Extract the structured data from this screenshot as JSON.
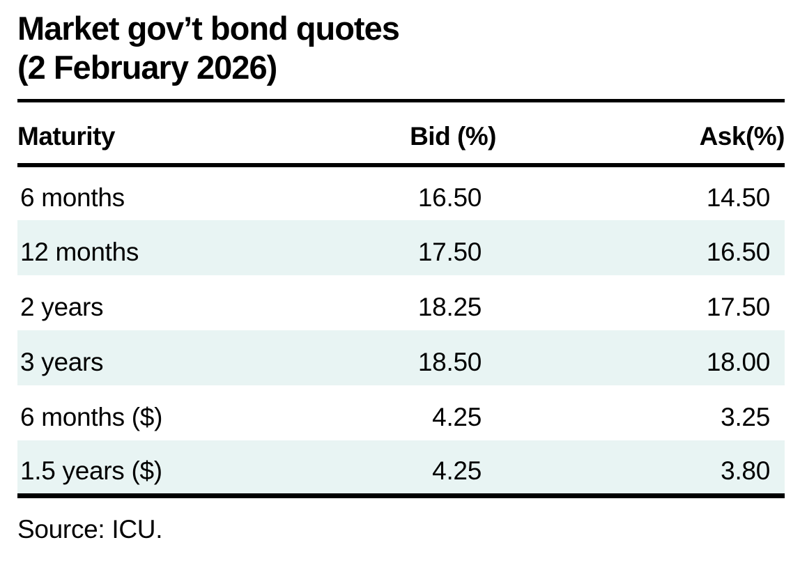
{
  "title": {
    "line1": "Market gov’t bond quotes",
    "line2": "(2 February 2026)"
  },
  "table": {
    "headers": {
      "maturity": "Maturity",
      "bid": "Bid (%)",
      "ask": "Ask(%)"
    },
    "rows": [
      {
        "maturity": "6 months",
        "bid": "16.50",
        "ask": "14.50"
      },
      {
        "maturity": "12 months",
        "bid": "17.50",
        "ask": "16.50"
      },
      {
        "maturity": "2 years",
        "bid": "18.25",
        "ask": "17.50"
      },
      {
        "maturity": "3 years",
        "bid": "18.50",
        "ask": "18.00"
      },
      {
        "maturity": "6 months ($)",
        "bid": "4.25",
        "ask": "3.25"
      },
      {
        "maturity": "1.5 years ($)",
        "bid": "4.25",
        "ask": "3.80"
      }
    ]
  },
  "source": "Source: ICU.",
  "colors": {
    "text": "#000000",
    "rule": "#000000",
    "row_shade": "#e8f4f3"
  },
  "chart_data": {
    "type": "table",
    "title": "Market gov’t bond quotes (2 February 2026)",
    "columns": [
      "Maturity",
      "Bid (%)",
      "Ask(%)"
    ],
    "rows": [
      [
        "6 months",
        16.5,
        14.5
      ],
      [
        "12 months",
        17.5,
        16.5
      ],
      [
        "2 years",
        18.25,
        17.5
      ],
      [
        "3 years",
        18.5,
        18.0
      ],
      [
        "6 months ($)",
        4.25,
        3.25
      ],
      [
        "1.5 years ($)",
        4.25,
        3.8
      ]
    ],
    "source": "Source: ICU.",
    "layout": {
      "shaded_row_indices": [
        1,
        3,
        5
      ],
      "value_alignment": "right"
    }
  }
}
